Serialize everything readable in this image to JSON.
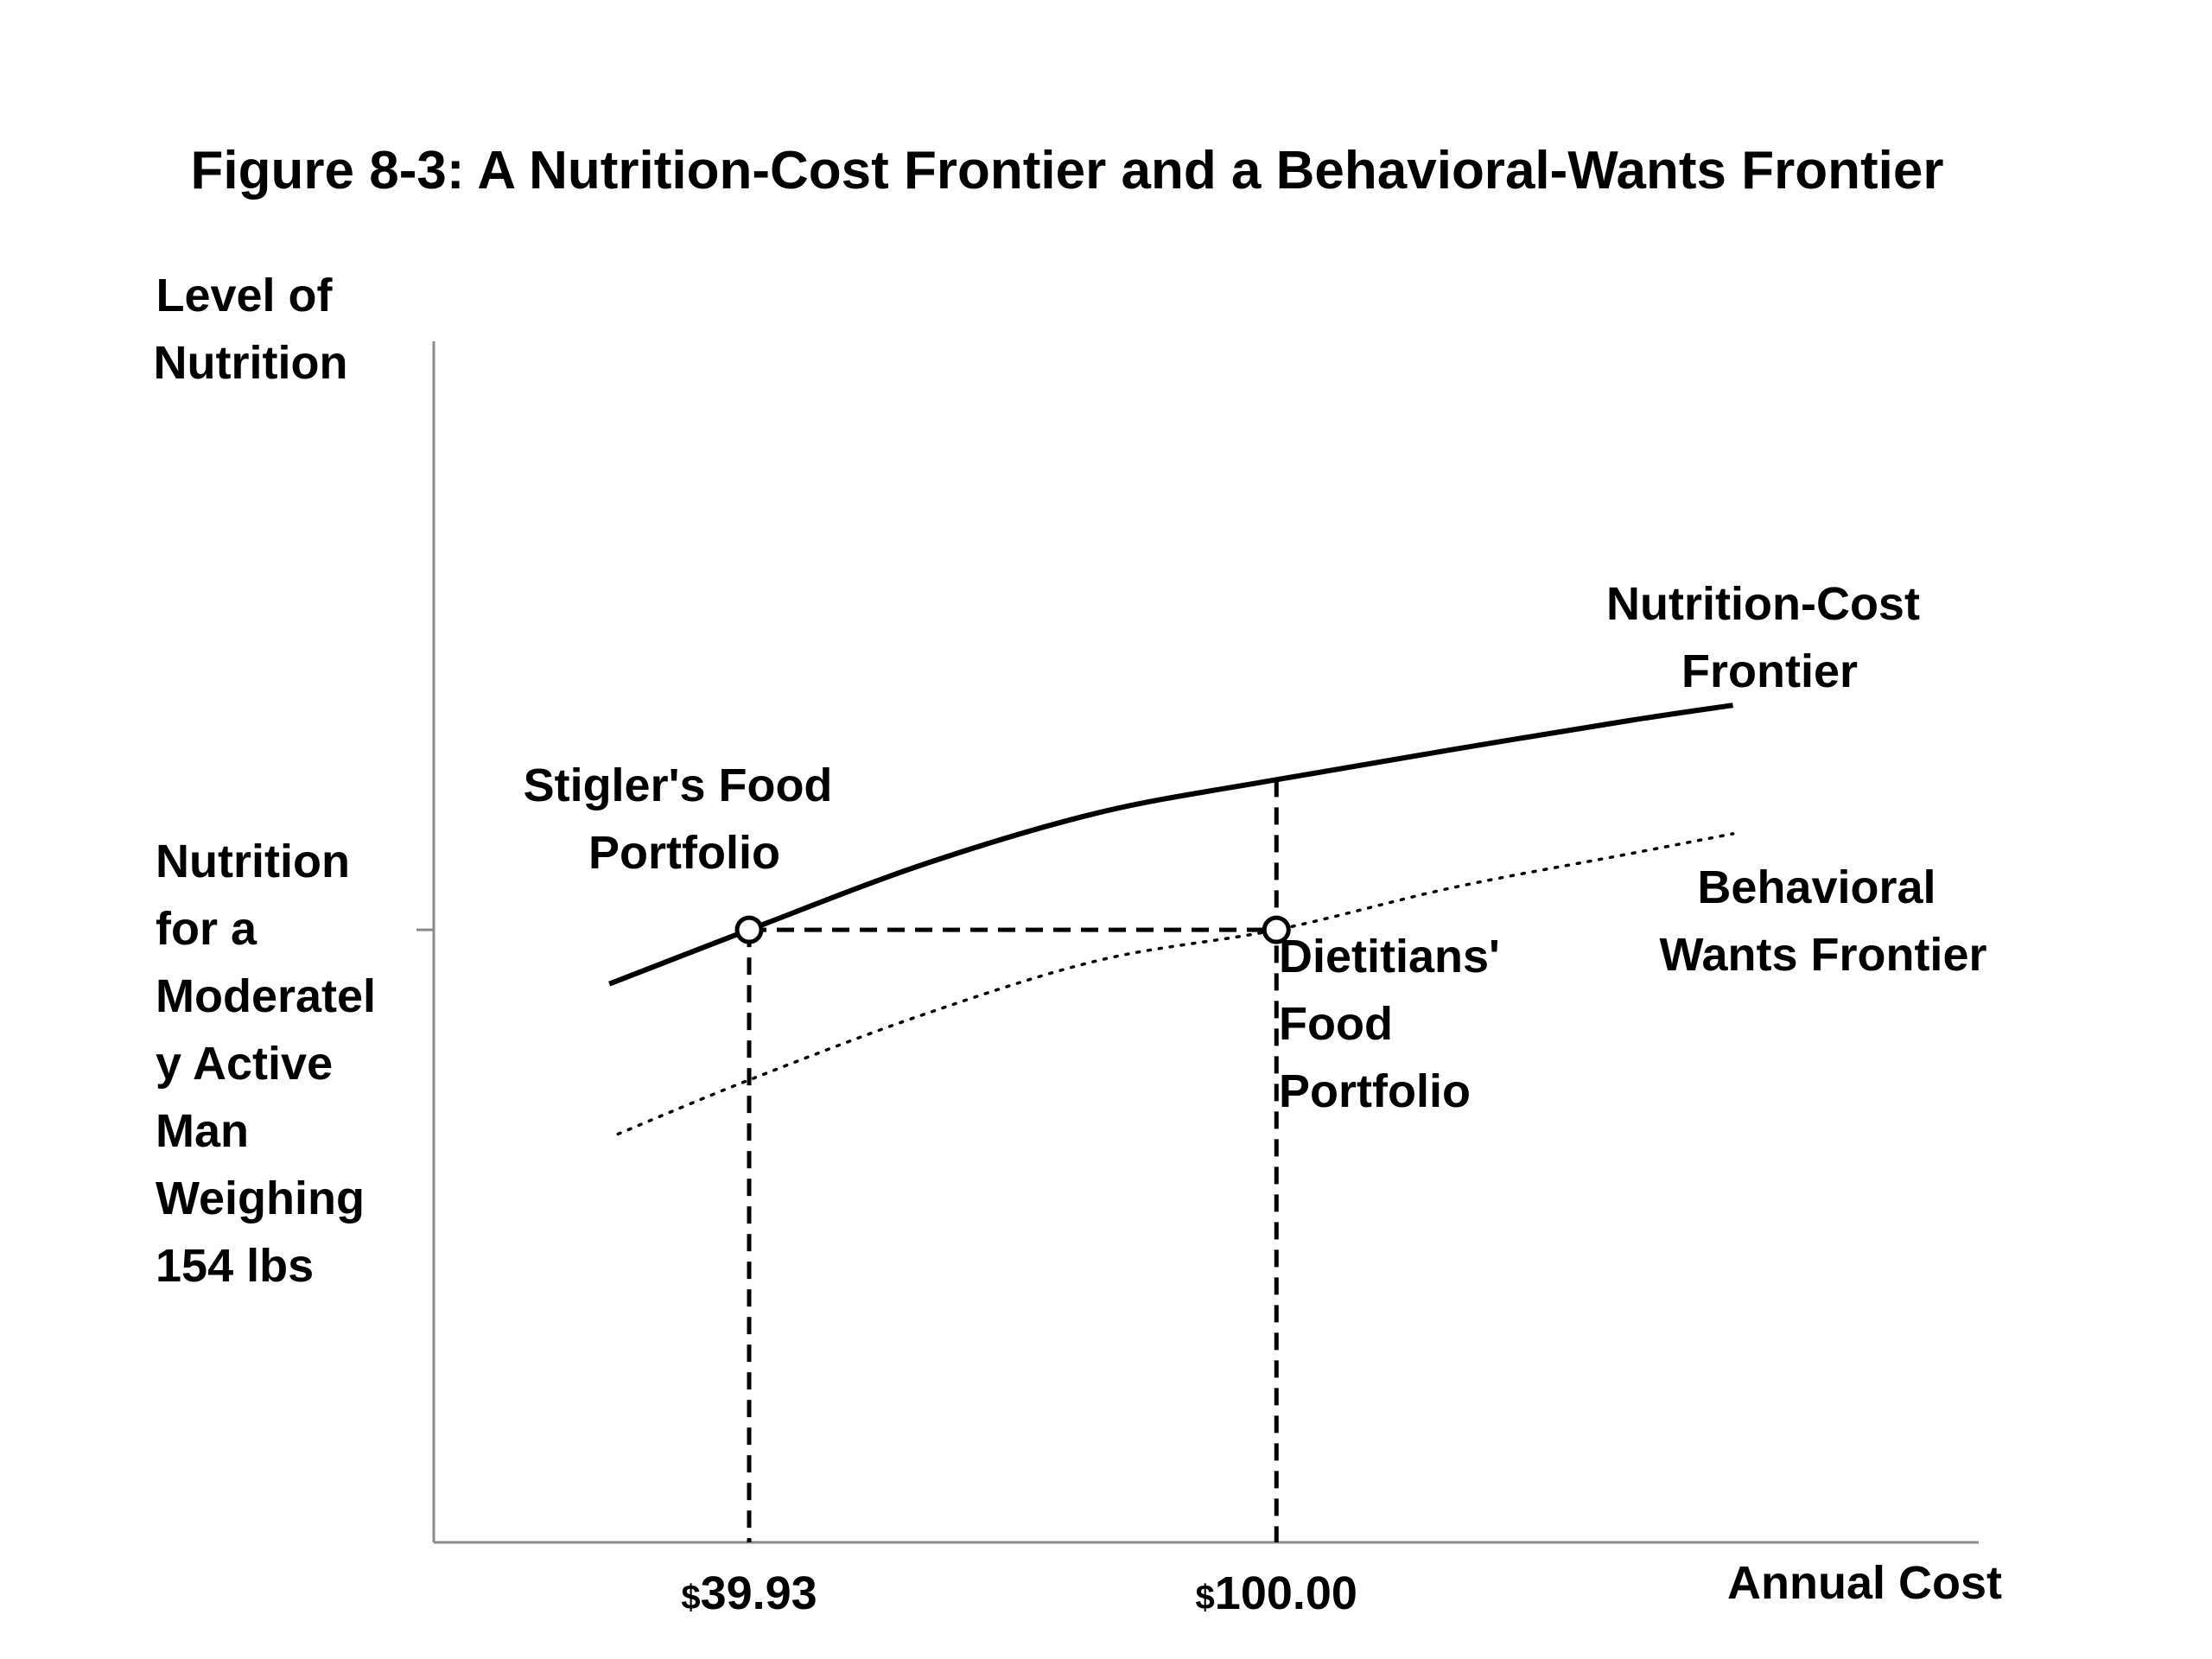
{
  "chart_data": {
    "type": "line",
    "title": "Figure 8-3: A Nutrition-Cost Frontier and a Behavioral-Wants Frontier",
    "ylabel": [
      "Level of",
      "Nutrition"
    ],
    "xlabel": "Annual Cost",
    "x_ticks": [
      {
        "value": 39.93,
        "label": "$39.93"
      },
      {
        "value": 100.0,
        "label": "$100.00"
      }
    ],
    "y_tick": {
      "label": [
        "Nutrition",
        "for a",
        "Moderatel",
        "y Active",
        "Man",
        "Weighing",
        "154 lbs"
      ]
    },
    "xlim": [
      4,
      180
    ],
    "ylim": [
      0,
      100
    ],
    "series": [
      {
        "name": "Nutrition-Cost Frontier",
        "label_lines": [
          "Nutrition-Cost",
          "Frontier"
        ],
        "style": "solid",
        "x": [
          24,
          39.93,
          60,
          80,
          100,
          120,
          140,
          152
        ],
        "y": [
          46.5,
          51,
          56.5,
          60.8,
          63.5,
          66,
          68.4,
          69.7
        ]
      },
      {
        "name": "Behavioral Wants Frontier",
        "label_lines": [
          "Behavioral",
          "Wants Frontier"
        ],
        "style": "dotted",
        "x": [
          25,
          39.93,
          60,
          80,
          100,
          120,
          140,
          152
        ],
        "y": [
          34,
          38.5,
          44,
          48.5,
          51,
          54.5,
          57.3,
          59
        ]
      }
    ],
    "points": [
      {
        "name": "Stigler's Food Portfolio",
        "label_lines": [
          "Stigler's Food",
          "Portfolio"
        ],
        "x": 39.93,
        "y": 51
      },
      {
        "name": "Dietitians' Food Portfolio",
        "label_lines": [
          "Dietitians'",
          "Food",
          "Portfolio"
        ],
        "x": 100.0,
        "y": 51
      }
    ],
    "reference_y": 51,
    "grid": false,
    "legend": "none",
    "colors": {
      "line": "#000000",
      "axis": "#8a8a8a",
      "background": "#ffffff"
    }
  }
}
